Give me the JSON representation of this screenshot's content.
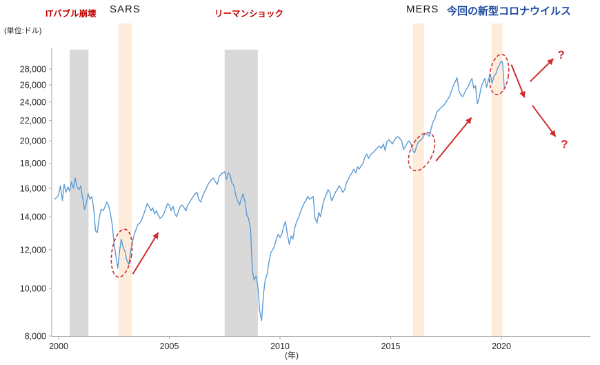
{
  "labels": {
    "unit": "(単位:ドル)",
    "it_bubble": "ITバブル崩壊",
    "sars": "SARS",
    "lehman": "リーマンショック",
    "mers": "MERS",
    "covid": "今回の新型コロナウイルス",
    "year_axis": "(年)"
  },
  "colors": {
    "line": "#5b9bd5",
    "recession_band": "#d9d9d9",
    "epidemic_band": "#fdecd9",
    "crisis_red": "#c00000",
    "accent_red": "#d02a2a",
    "covid_blue": "#1f4aa0",
    "axis": "#a6a6a6",
    "tick_text": "#262626"
  },
  "chart_data": {
    "type": "line",
    "y_scale": "log",
    "y_unit": "ドル",
    "x_unit": "年",
    "y_ticks": [
      8000,
      10000,
      12000,
      14000,
      16000,
      18000,
      20000,
      22000,
      24000,
      26000,
      28000
    ],
    "x_ticks": [
      2000,
      2005,
      2010,
      2015,
      2020
    ],
    "y_range": [
      8000,
      30500
    ],
    "x_range": [
      1999.7,
      2024.2
    ],
    "recession_bands": [
      [
        2000.5,
        2001.35
      ],
      [
        2007.5,
        2009.0
      ]
    ],
    "epidemic_bands": [
      [
        2002.7,
        2003.3
      ],
      [
        2016.0,
        2016.5
      ],
      [
        2019.55,
        2020.05
      ]
    ],
    "series": [
      {
        "points": [
          [
            1999.83,
            15200
          ],
          [
            2000.0,
            15500
          ],
          [
            2000.08,
            16200
          ],
          [
            2000.17,
            15100
          ],
          [
            2000.25,
            16300
          ],
          [
            2000.33,
            15700
          ],
          [
            2000.42,
            16100
          ],
          [
            2000.5,
            15800
          ],
          [
            2000.58,
            16500
          ],
          [
            2000.67,
            16000
          ],
          [
            2000.75,
            16800
          ],
          [
            2000.83,
            16100
          ],
          [
            2000.92,
            15900
          ],
          [
            2001.0,
            16200
          ],
          [
            2001.08,
            15300
          ],
          [
            2001.17,
            14500
          ],
          [
            2001.25,
            14900
          ],
          [
            2001.33,
            15600
          ],
          [
            2001.42,
            15200
          ],
          [
            2001.5,
            15400
          ],
          [
            2001.58,
            14600
          ],
          [
            2001.67,
            13100
          ],
          [
            2001.75,
            13000
          ],
          [
            2001.83,
            13900
          ],
          [
            2001.92,
            14500
          ],
          [
            2002.0,
            14400
          ],
          [
            2002.08,
            14600
          ],
          [
            2002.17,
            15000
          ],
          [
            2002.25,
            14800
          ],
          [
            2002.33,
            14300
          ],
          [
            2002.42,
            13500
          ],
          [
            2002.5,
            12400
          ],
          [
            2002.58,
            11700
          ],
          [
            2002.67,
            11000
          ],
          [
            2002.75,
            11900
          ],
          [
            2002.83,
            12600
          ],
          [
            2002.92,
            12100
          ],
          [
            2003.0,
            11900
          ],
          [
            2003.08,
            11400
          ],
          [
            2003.17,
            11200
          ],
          [
            2003.25,
            11900
          ],
          [
            2003.33,
            12400
          ],
          [
            2003.42,
            12900
          ],
          [
            2003.5,
            13200
          ],
          [
            2003.58,
            13500
          ],
          [
            2003.67,
            13600
          ],
          [
            2003.75,
            13800
          ],
          [
            2003.83,
            14100
          ],
          [
            2003.92,
            14500
          ],
          [
            2004.0,
            14900
          ],
          [
            2004.08,
            14700
          ],
          [
            2004.17,
            14400
          ],
          [
            2004.25,
            14600
          ],
          [
            2004.33,
            14200
          ],
          [
            2004.42,
            14400
          ],
          [
            2004.5,
            14100
          ],
          [
            2004.58,
            13900
          ],
          [
            2004.67,
            14000
          ],
          [
            2004.75,
            14200
          ],
          [
            2004.83,
            14500
          ],
          [
            2004.92,
            14900
          ],
          [
            2005.0,
            14800
          ],
          [
            2005.08,
            14400
          ],
          [
            2005.17,
            14700
          ],
          [
            2005.25,
            14200
          ],
          [
            2005.33,
            14000
          ],
          [
            2005.42,
            14400
          ],
          [
            2005.5,
            14700
          ],
          [
            2005.58,
            14800
          ],
          [
            2005.67,
            14600
          ],
          [
            2005.75,
            14400
          ],
          [
            2005.83,
            14800
          ],
          [
            2005.92,
            15000
          ],
          [
            2006.0,
            15200
          ],
          [
            2006.08,
            15400
          ],
          [
            2006.17,
            15600
          ],
          [
            2006.25,
            15700
          ],
          [
            2006.33,
            15200
          ],
          [
            2006.42,
            15000
          ],
          [
            2006.5,
            15400
          ],
          [
            2006.58,
            15700
          ],
          [
            2006.67,
            16000
          ],
          [
            2006.75,
            16300
          ],
          [
            2006.83,
            16500
          ],
          [
            2006.92,
            16700
          ],
          [
            2007.0,
            16800
          ],
          [
            2007.08,
            16500
          ],
          [
            2007.17,
            16300
          ],
          [
            2007.25,
            16900
          ],
          [
            2007.33,
            17100
          ],
          [
            2007.42,
            17200
          ],
          [
            2007.5,
            17300
          ],
          [
            2007.58,
            16700
          ],
          [
            2007.67,
            17200
          ],
          [
            2007.75,
            17000
          ],
          [
            2007.83,
            16400
          ],
          [
            2007.92,
            16200
          ],
          [
            2008.0,
            15500
          ],
          [
            2008.08,
            15100
          ],
          [
            2008.17,
            14800
          ],
          [
            2008.25,
            15200
          ],
          [
            2008.33,
            15600
          ],
          [
            2008.42,
            15000
          ],
          [
            2008.5,
            14100
          ],
          [
            2008.58,
            13900
          ],
          [
            2008.67,
            13200
          ],
          [
            2008.75,
            10900
          ],
          [
            2008.83,
            10400
          ],
          [
            2008.92,
            10600
          ],
          [
            2009.0,
            10100
          ],
          [
            2009.08,
            9000
          ],
          [
            2009.17,
            8600
          ],
          [
            2009.25,
            9700
          ],
          [
            2009.33,
            10400
          ],
          [
            2009.42,
            10700
          ],
          [
            2009.5,
            11300
          ],
          [
            2009.58,
            11800
          ],
          [
            2009.67,
            12000
          ],
          [
            2009.75,
            12200
          ],
          [
            2009.83,
            12600
          ],
          [
            2009.92,
            12900
          ],
          [
            2010.0,
            12700
          ],
          [
            2010.08,
            12900
          ],
          [
            2010.17,
            13400
          ],
          [
            2010.25,
            13700
          ],
          [
            2010.33,
            12900
          ],
          [
            2010.42,
            12300
          ],
          [
            2010.5,
            12800
          ],
          [
            2010.58,
            12600
          ],
          [
            2010.67,
            13300
          ],
          [
            2010.75,
            13700
          ],
          [
            2010.83,
            13900
          ],
          [
            2010.92,
            14300
          ],
          [
            2011.0,
            14600
          ],
          [
            2011.08,
            14900
          ],
          [
            2011.17,
            15100
          ],
          [
            2011.25,
            15400
          ],
          [
            2011.33,
            15200
          ],
          [
            2011.42,
            15300
          ],
          [
            2011.5,
            15400
          ],
          [
            2011.58,
            13900
          ],
          [
            2011.67,
            13600
          ],
          [
            2011.75,
            14300
          ],
          [
            2011.83,
            14000
          ],
          [
            2011.92,
            14700
          ],
          [
            2012.0,
            15200
          ],
          [
            2012.08,
            15500
          ],
          [
            2012.17,
            15900
          ],
          [
            2012.25,
            15700
          ],
          [
            2012.33,
            15100
          ],
          [
            2012.42,
            15400
          ],
          [
            2012.5,
            15700
          ],
          [
            2012.58,
            15900
          ],
          [
            2012.67,
            16200
          ],
          [
            2012.75,
            16000
          ],
          [
            2012.83,
            15700
          ],
          [
            2012.92,
            15900
          ],
          [
            2013.0,
            16400
          ],
          [
            2013.08,
            16700
          ],
          [
            2013.17,
            17000
          ],
          [
            2013.25,
            17200
          ],
          [
            2013.33,
            17500
          ],
          [
            2013.42,
            17200
          ],
          [
            2013.5,
            17700
          ],
          [
            2013.58,
            17500
          ],
          [
            2013.67,
            17800
          ],
          [
            2013.75,
            18000
          ],
          [
            2013.83,
            18500
          ],
          [
            2013.92,
            18800
          ],
          [
            2014.0,
            18400
          ],
          [
            2014.08,
            18700
          ],
          [
            2014.17,
            18900
          ],
          [
            2014.25,
            19000
          ],
          [
            2014.33,
            19200
          ],
          [
            2014.42,
            19400
          ],
          [
            2014.5,
            19500
          ],
          [
            2014.58,
            19300
          ],
          [
            2014.67,
            19700
          ],
          [
            2014.75,
            19100
          ],
          [
            2014.83,
            19900
          ],
          [
            2014.92,
            20100
          ],
          [
            2015.0,
            19900
          ],
          [
            2015.08,
            19700
          ],
          [
            2015.17,
            20100
          ],
          [
            2015.25,
            20300
          ],
          [
            2015.33,
            20400
          ],
          [
            2015.42,
            20200
          ],
          [
            2015.5,
            20000
          ],
          [
            2015.58,
            19200
          ],
          [
            2015.67,
            19500
          ],
          [
            2015.75,
            19800
          ],
          [
            2015.83,
            20000
          ],
          [
            2015.92,
            19700
          ],
          [
            2016.0,
            19100
          ],
          [
            2016.08,
            18900
          ],
          [
            2016.17,
            19500
          ],
          [
            2016.25,
            19900
          ],
          [
            2016.33,
            20000
          ],
          [
            2016.42,
            20200
          ],
          [
            2016.5,
            20500
          ],
          [
            2016.58,
            20700
          ],
          [
            2016.67,
            20600
          ],
          [
            2016.75,
            20400
          ],
          [
            2016.83,
            21200
          ],
          [
            2016.92,
            21900
          ],
          [
            2017.0,
            22200
          ],
          [
            2017.08,
            22900
          ],
          [
            2017.17,
            23100
          ],
          [
            2017.25,
            23300
          ],
          [
            2017.33,
            23500
          ],
          [
            2017.42,
            23700
          ],
          [
            2017.5,
            24000
          ],
          [
            2017.58,
            24300
          ],
          [
            2017.67,
            24700
          ],
          [
            2017.75,
            25300
          ],
          [
            2017.83,
            25900
          ],
          [
            2017.92,
            26400
          ],
          [
            2018.0,
            26900
          ],
          [
            2018.08,
            25300
          ],
          [
            2018.17,
            24800
          ],
          [
            2018.25,
            24600
          ],
          [
            2018.33,
            25000
          ],
          [
            2018.42,
            25500
          ],
          [
            2018.5,
            25800
          ],
          [
            2018.58,
            26300
          ],
          [
            2018.67,
            26800
          ],
          [
            2018.75,
            25600
          ],
          [
            2018.83,
            25900
          ],
          [
            2018.92,
            23800
          ],
          [
            2019.0,
            24500
          ],
          [
            2019.08,
            25700
          ],
          [
            2019.17,
            26300
          ],
          [
            2019.25,
            26800
          ],
          [
            2019.33,
            25700
          ],
          [
            2019.42,
            26700
          ],
          [
            2019.5,
            27300
          ],
          [
            2019.58,
            26200
          ],
          [
            2019.67,
            27100
          ],
          [
            2019.75,
            27400
          ],
          [
            2019.83,
            28100
          ],
          [
            2019.92,
            28600
          ],
          [
            2020.0,
            29100
          ],
          [
            2020.06,
            28800
          ],
          [
            2020.13,
            25600
          ]
        ]
      }
    ],
    "circled_regions": [
      {
        "event": "sars-dip",
        "year": 2002.85,
        "value": 11800,
        "rx_years": 0.45,
        "ry_ratio": 1.12,
        "rotate_deg": 8
      },
      {
        "event": "mers-dip",
        "year": 2016.4,
        "value": 19000,
        "rx_years": 0.5,
        "ry_ratio": 1.1,
        "rotate_deg": 25
      },
      {
        "event": "covid-drop",
        "year": 2019.9,
        "value": 27300,
        "rx_years": 0.42,
        "ry_ratio": 1.1,
        "rotate_deg": 8
      }
    ],
    "arrows": [
      {
        "from": [
          2003.35,
          10700
        ],
        "to": [
          2004.5,
          13000
        ]
      },
      {
        "from": [
          2017.05,
          18200
        ],
        "to": [
          2018.65,
          22300
        ]
      },
      {
        "from": [
          2020.45,
          28600
        ],
        "to": [
          2021.05,
          24500
        ]
      },
      {
        "from": [
          2021.3,
          26400
        ],
        "to": [
          2022.35,
          29400
        ]
      },
      {
        "from": [
          2021.4,
          23600
        ],
        "to": [
          2022.45,
          20400
        ]
      }
    ],
    "question_marks": [
      {
        "label": "?",
        "year": 2022.7,
        "value": 30000
      },
      {
        "label": "?",
        "year": 2022.85,
        "value": 19700
      }
    ]
  }
}
